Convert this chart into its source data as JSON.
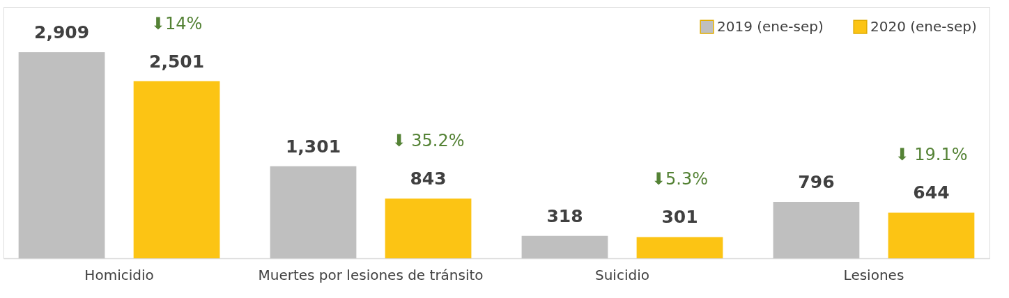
{
  "chart_data": {
    "type": "bar",
    "categories": [
      "Homicidio",
      "Muertes por lesiones de tránsito",
      "Suicidio",
      "Lesiones"
    ],
    "series": [
      {
        "name": "2019 (ene-sep)",
        "color": "#bfbfbf",
        "values": [
          2909,
          1301,
          318,
          796
        ],
        "value_labels": [
          "2,909",
          "1,301",
          "318",
          "796"
        ]
      },
      {
        "name": "2020 (ene-sep)",
        "color": "#fcc414",
        "values": [
          2501,
          843,
          301,
          644
        ],
        "value_labels": [
          "2,501",
          "843",
          "301",
          "644"
        ]
      }
    ],
    "legend": "top right",
    "grid": false,
    "annotations": [
      "⬇14%",
      "⬇ 35.2%",
      "⬇5.3%",
      "⬇ 19.1%"
    ]
  }
}
